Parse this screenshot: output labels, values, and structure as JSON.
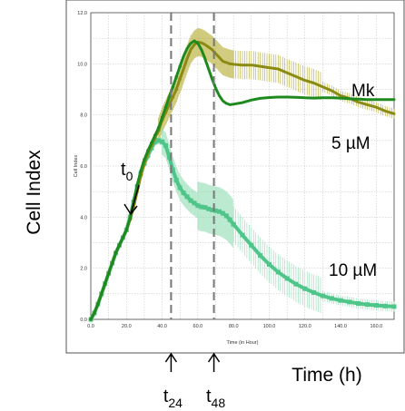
{
  "figure": {
    "y_axis_label": "Cell Index",
    "x_axis_label": "Time (h)",
    "annotations": {
      "t0": {
        "base": "t",
        "sub": "0",
        "x_hours": 18
      },
      "t24": {
        "base": "t",
        "sub": "24",
        "x_hours": 45
      },
      "t48": {
        "base": "t",
        "sub": "48",
        "x_hours": 69
      },
      "mk_label": "Mk",
      "five_label": "5 µM",
      "ten_label": "10 µM"
    }
  },
  "chart_data": {
    "type": "line",
    "title": "",
    "xlabel": "Time (in Hour)",
    "ylabel": "Cell Index",
    "xlim": [
      0,
      170
    ],
    "ylim": [
      0,
      12
    ],
    "x_ticks": [
      "0.0",
      "20.0",
      "40.0",
      "60.0",
      "80.0",
      "100.0",
      "120.0",
      "140.0",
      "160.0"
    ],
    "y_ticks": [
      "0.0",
      "2.0",
      "4.0",
      "6.0",
      "8.0",
      "10.0",
      "12.0"
    ],
    "grid": true,
    "vertical_markers": [
      45,
      69
    ],
    "series": [
      {
        "name": "Mk",
        "color": "#8b8a12",
        "x": [
          0,
          2,
          4,
          6,
          8,
          10,
          12,
          14,
          16,
          18,
          20,
          22,
          24,
          26,
          28,
          30,
          32,
          34,
          36,
          38,
          40,
          42,
          44,
          46,
          48,
          50,
          52,
          54,
          56,
          58,
          60,
          62,
          64,
          66,
          68,
          70,
          72,
          74,
          76,
          78,
          80,
          85,
          90,
          95,
          100,
          105,
          110,
          115,
          120,
          125,
          130,
          135,
          140,
          145,
          150,
          155,
          160,
          165,
          170
        ],
        "y": [
          0.0,
          0.25,
          0.6,
          1.0,
          1.4,
          1.8,
          2.2,
          2.6,
          2.9,
          3.2,
          3.5,
          3.9,
          4.4,
          5.0,
          5.6,
          6.1,
          6.5,
          6.8,
          7.1,
          7.4,
          7.8,
          8.1,
          8.4,
          8.7,
          9.0,
          9.4,
          9.8,
          10.2,
          10.55,
          10.75,
          10.85,
          10.82,
          10.75,
          10.65,
          10.55,
          10.4,
          10.25,
          10.1,
          10.05,
          10.0,
          9.98,
          9.95,
          9.95,
          9.9,
          9.85,
          9.8,
          9.65,
          9.5,
          9.35,
          9.25,
          9.1,
          8.95,
          8.75,
          8.65,
          8.5,
          8.4,
          8.3,
          8.15,
          8.05
        ]
      },
      {
        "name": "5 µM",
        "color": "#1e8a1e",
        "x": [
          0,
          2,
          4,
          6,
          8,
          10,
          12,
          14,
          16,
          18,
          20,
          22,
          24,
          26,
          28,
          30,
          32,
          34,
          36,
          38,
          40,
          42,
          44,
          46,
          48,
          50,
          52,
          54,
          56,
          58,
          60,
          62,
          64,
          66,
          68,
          70,
          72,
          74,
          76,
          78,
          80,
          85,
          90,
          95,
          100,
          105,
          110,
          115,
          120,
          125,
          130,
          135,
          140,
          145,
          150,
          155,
          160,
          165,
          170
        ],
        "y": [
          0.0,
          0.25,
          0.6,
          1.0,
          1.4,
          1.8,
          2.2,
          2.6,
          2.9,
          3.2,
          3.5,
          3.95,
          4.6,
          5.25,
          5.8,
          6.25,
          6.6,
          6.9,
          7.2,
          7.5,
          7.9,
          8.3,
          8.7,
          9.1,
          9.5,
          9.9,
          10.3,
          10.6,
          10.8,
          10.9,
          10.8,
          10.55,
          10.2,
          9.8,
          9.4,
          9.05,
          8.75,
          8.55,
          8.45,
          8.4,
          8.42,
          8.48,
          8.58,
          8.65,
          8.68,
          8.7,
          8.7,
          8.69,
          8.67,
          8.66,
          8.67,
          8.67,
          8.66,
          8.63,
          8.62,
          8.6,
          8.6,
          8.6,
          8.6
        ]
      },
      {
        "name": "10 µM",
        "color": "#4fc58a",
        "x": [
          0,
          2,
          4,
          6,
          8,
          10,
          12,
          14,
          16,
          18,
          20,
          22,
          24,
          26,
          28,
          30,
          32,
          34,
          36,
          38,
          40,
          42,
          44,
          46,
          48,
          50,
          52,
          54,
          56,
          58,
          60,
          62,
          64,
          66,
          68,
          70,
          72,
          74,
          76,
          78,
          80,
          85,
          90,
          95,
          100,
          105,
          110,
          115,
          120,
          125,
          130,
          135,
          140,
          145,
          150,
          155,
          160,
          165,
          170
        ],
        "y": [
          0.0,
          0.25,
          0.6,
          1.0,
          1.4,
          1.8,
          2.2,
          2.6,
          2.9,
          3.2,
          3.5,
          4.0,
          4.6,
          5.2,
          5.7,
          6.1,
          6.4,
          6.7,
          6.95,
          7.0,
          6.95,
          6.8,
          6.35,
          5.85,
          5.45,
          5.15,
          4.95,
          4.8,
          4.65,
          4.55,
          4.45,
          4.4,
          4.38,
          4.32,
          4.28,
          4.25,
          4.22,
          4.15,
          4.05,
          3.9,
          3.72,
          3.3,
          2.9,
          2.5,
          2.15,
          1.85,
          1.6,
          1.38,
          1.2,
          1.05,
          0.92,
          0.82,
          0.74,
          0.68,
          0.62,
          0.58,
          0.55,
          0.52,
          0.5
        ]
      }
    ]
  }
}
